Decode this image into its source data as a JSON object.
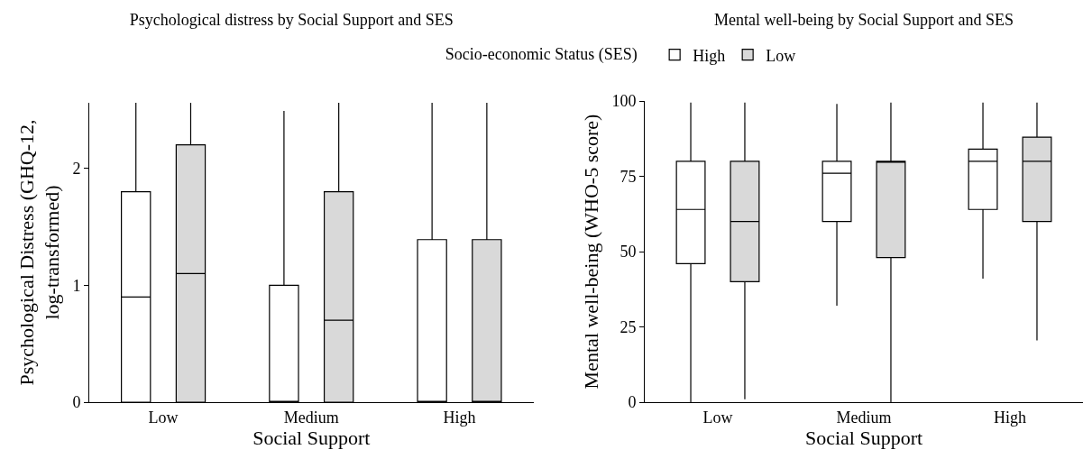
{
  "chart_data": [
    {
      "type": "box",
      "title": "Psychological distress by Social Support and SES",
      "xlabel": "Social Support",
      "ylabel": "Psychological Distress (GHQ-12,\nlog-transformed)",
      "legend_title": "Socio-economic Status (SES)",
      "legend": "top",
      "categories": [
        "Low",
        "Medium",
        "High"
      ],
      "ylim": [
        0,
        2.56
      ],
      "yticks": [
        0,
        1,
        2
      ],
      "grid": false,
      "series": [
        {
          "name": "High",
          "color": "#ffffff",
          "boxes": [
            {
              "low": 0,
              "q1": 0,
              "median": 0.9,
              "q3": 1.8,
              "high": 2.56
            },
            {
              "low": 0,
              "q1": 0,
              "median": 0,
              "q3": 1.0,
              "high": 2.49
            },
            {
              "low": 0,
              "q1": 0,
              "median": 0,
              "q3": 1.39,
              "high": 2.56
            }
          ]
        },
        {
          "name": "Low",
          "color": "#d9d9d9",
          "boxes": [
            {
              "low": 0,
              "q1": 0,
              "median": 1.1,
              "q3": 2.2,
              "high": 2.56
            },
            {
              "low": 0,
              "q1": 0,
              "median": 0.7,
              "q3": 1.8,
              "high": 2.56
            },
            {
              "low": 0,
              "q1": 0,
              "median": 0,
              "q3": 1.39,
              "high": 2.56
            }
          ]
        }
      ]
    },
    {
      "type": "box",
      "title": "Mental well-being by Social Support and SES",
      "xlabel": "Social Support",
      "ylabel": "Mental well-being (WHO-5 score)",
      "categories": [
        "Low",
        "Medium",
        "High"
      ],
      "ylim": [
        0,
        100
      ],
      "yticks": [
        0,
        25,
        50,
        75,
        100
      ],
      "grid": false,
      "series": [
        {
          "color": "#ffffff",
          "boxes": [
            {
              "low": 0,
              "q1": 46,
              "median": 64,
              "q3": 80,
              "high": 99.5
            },
            {
              "low": 32,
              "q1": 60,
              "median": 76,
              "q3": 80,
              "high": 99
            },
            {
              "low": 41,
              "q1": 64,
              "median": 80,
              "q3": 84,
              "high": 99.5
            }
          ]
        },
        {
          "color": "#d9d9d9",
          "boxes": [
            {
              "low": 1,
              "q1": 40,
              "median": 60,
              "q3": 80,
              "high": 99.5
            },
            {
              "low": 0,
              "q1": 48,
              "median": 80,
              "q3": 80,
              "high": 99.5
            },
            {
              "low": 20.5,
              "q1": 60,
              "median": 80,
              "q3": 88,
              "high": 99.5
            }
          ]
        }
      ]
    }
  ]
}
